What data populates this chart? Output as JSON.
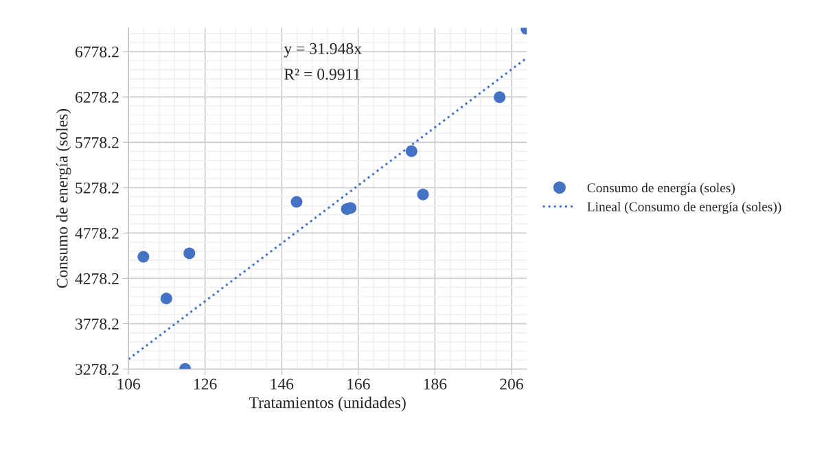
{
  "chart_data": {
    "type": "scatter",
    "xlabel": "Tratamientos (unidades)",
    "ylabel": "Consumo de energía (soles)",
    "annotations": [
      "y = 31.948x",
      "R² = 0.9911"
    ],
    "series": [
      {
        "name": "Consumo de energía (soles)",
        "color": "#4472c4",
        "marker": "circle",
        "x": [
          109.9,
          115.9,
          121.9,
          120.8,
          149.9,
          163.0,
          164.0,
          179.9,
          182.9,
          202.9,
          209.9
        ],
        "values": [
          4517,
          4056,
          4555,
          3281,
          5121,
          5042,
          5054,
          5680,
          5203,
          6275,
          7030
        ]
      },
      {
        "name": "Lineal (Consumo de energía (soles))",
        "type": "line",
        "color": "#4472c4",
        "line_style": "dotted",
        "marker": "none",
        "x": [
          106,
          210
        ],
        "values": [
          3387,
          6709
        ]
      }
    ],
    "xlim": [
      106,
      210
    ],
    "xticks": [
      106,
      126,
      146,
      166,
      186,
      206
    ],
    "ylim": [
      3278.2,
      7040
    ],
    "yticks": [
      3278.2,
      3778.2,
      4278.2,
      4778.2,
      5278.2,
      5778.2,
      6278.2,
      6778.2
    ],
    "grid": true,
    "legend": "right"
  }
}
